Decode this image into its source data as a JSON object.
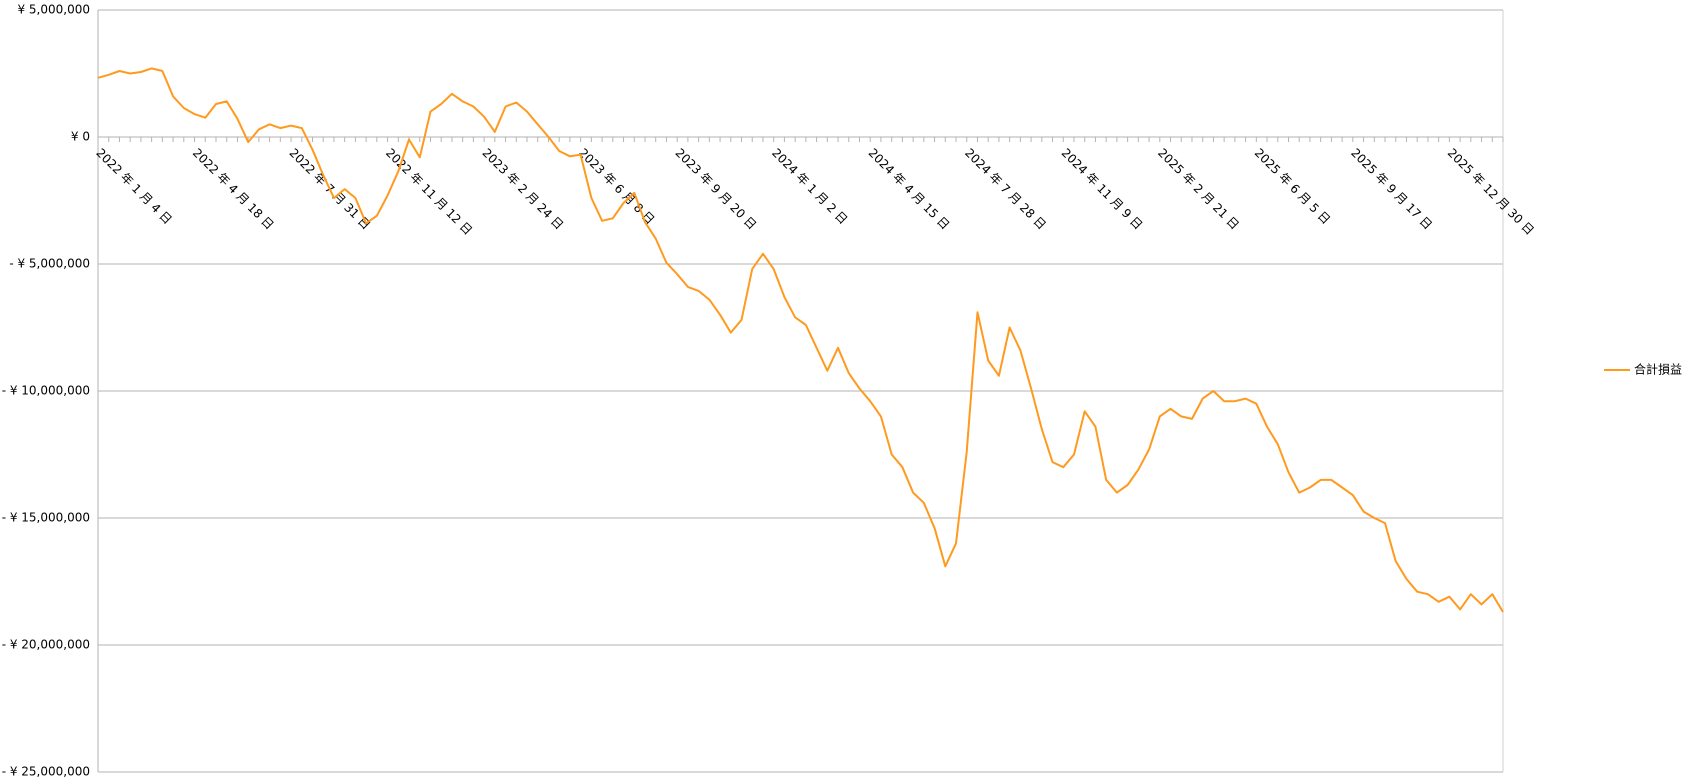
{
  "chart_data": {
    "type": "line",
    "categories": [
      "2022 年 1 月 4 日",
      null,
      null,
      null,
      null,
      null,
      null,
      null,
      null,
      "2022 年 4 月 18 日",
      null,
      null,
      null,
      null,
      null,
      null,
      null,
      null,
      "2022 年 7 月 31 日",
      null,
      null,
      null,
      null,
      null,
      null,
      null,
      null,
      "2022 年 11 月 12 日",
      null,
      null,
      null,
      null,
      null,
      null,
      null,
      null,
      "2023 年 2 月 24 日",
      null,
      null,
      null,
      null,
      null,
      null,
      null,
      null,
      "2023 年 6 月 8 日",
      null,
      null,
      null,
      null,
      null,
      null,
      null,
      null,
      "2023 年 9 月 20 日",
      null,
      null,
      null,
      null,
      null,
      null,
      null,
      null,
      "2024 年 1 月 2 日",
      null,
      null,
      null,
      null,
      null,
      null,
      null,
      null,
      "2024 年 4 月 15 日",
      null,
      null,
      null,
      null,
      null,
      null,
      null,
      null,
      "2024 年 7 月 28 日",
      null,
      null,
      null,
      null,
      null,
      null,
      null,
      null,
      "2024 年 11 月 9 日",
      null,
      null,
      null,
      null,
      null,
      null,
      null,
      null,
      "2025 年 2 月 21 日",
      null,
      null,
      null,
      null,
      null,
      null,
      null,
      null,
      "2025 年 6 月 5 日",
      null,
      null,
      null,
      null,
      null,
      null,
      null,
      null,
      "2025 年 9 月 17 日",
      null,
      null,
      null,
      null,
      null,
      null,
      null,
      null,
      "2025 年 12 月 30 日",
      null,
      null,
      null,
      null,
      null
    ],
    "series": [
      {
        "name": "合計損益",
        "color": "#ff9a1f",
        "values": [
          2330000,
          2450000,
          2600000,
          2500000,
          2560000,
          2700000,
          2600000,
          1600000,
          1140000,
          900000,
          760000,
          1300000,
          1400000,
          720000,
          -200000,
          300000,
          500000,
          350000,
          450000,
          350000,
          -500000,
          -1500000,
          -2400000,
          -2050000,
          -2400000,
          -3400000,
          -3100000,
          -2300000,
          -1350000,
          -100000,
          -800000,
          1000000,
          1300000,
          1700000,
          1400000,
          1200000,
          800000,
          200000,
          1200000,
          1360000,
          1000000,
          500000,
          0,
          -550000,
          -760000,
          -700000,
          -2400000,
          -3300000,
          -3200000,
          -2600000,
          -2200000,
          -3350000,
          -4000000,
          -4950000,
          -5400000,
          -5900000,
          -6060000,
          -6400000,
          -7000000,
          -7700000,
          -7200000,
          -5200000,
          -4600000,
          -5200000,
          -6300000,
          -7100000,
          -7400000,
          -8300000,
          -9200000,
          -8300000,
          -9300000,
          -9900000,
          -10400000,
          -11000000,
          -12500000,
          -13000000,
          -14000000,
          -14400000,
          -15400000,
          -16900000,
          -16000000,
          -12400000,
          -6900000,
          -8800000,
          -9400000,
          -7500000,
          -8400000,
          -9900000,
          -11500000,
          -12800000,
          -13000000,
          -12500000,
          -10800000,
          -11400000,
          -13500000,
          -14000000,
          -13700000,
          -13100000,
          -12300000,
          -11000000,
          -10700000,
          -11000000,
          -11100000,
          -10300000,
          -10000000,
          -10400000,
          -10400000,
          -10300000,
          -10500000,
          -11400000,
          -12100000,
          -13200000,
          -14000000,
          -13800000,
          -13500000,
          -13500000,
          -13800000,
          -14100000,
          -14750000,
          -15000000,
          -15200000,
          -16700000,
          -17400000,
          -17900000,
          -18000000,
          -18300000,
          -18100000,
          -18600000,
          -18000000,
          -18400000,
          -18000000,
          -18700000
        ]
      }
    ],
    "ylim": [
      -25000000,
      5000000
    ],
    "yticks": [
      {
        "value": 5000000,
        "label": "¥ 5,000,000"
      },
      {
        "value": 0,
        "label": "¥ 0"
      },
      {
        "value": -5000000,
        "label": "- ¥ 5,000,000"
      },
      {
        "value": -10000000,
        "label": "- ¥ 10,000,000"
      },
      {
        "value": -15000000,
        "label": "- ¥ 15,000,000"
      },
      {
        "value": -20000000,
        "label": "- ¥ 20,000,000"
      },
      {
        "value": -25000000,
        "label": "- ¥ 25,000,000"
      }
    ],
    "negative_tick_color": "#e00000",
    "grid": true,
    "legend": "right"
  }
}
